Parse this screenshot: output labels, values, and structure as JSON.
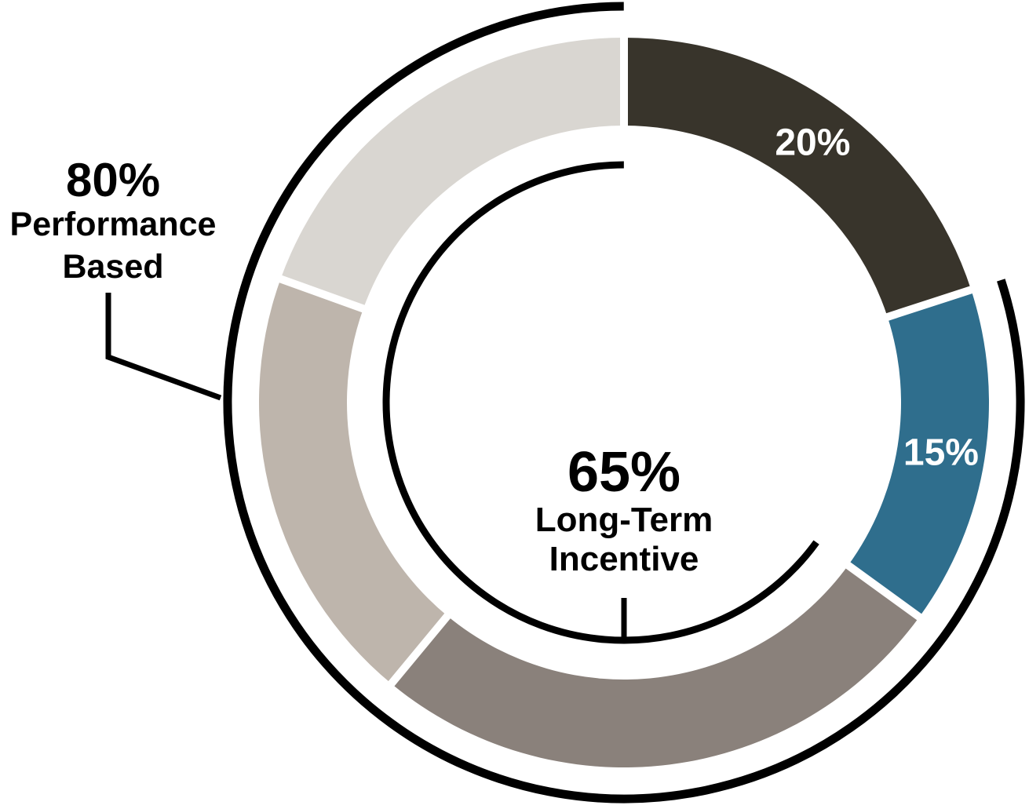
{
  "chart_data": {
    "type": "donut",
    "background_color": "#ffffff",
    "arc_color": "#000000",
    "segments": [
      {
        "label": "20%",
        "value": 20,
        "color": "#38342b",
        "label_color": "#ffffff"
      },
      {
        "label": "15%",
        "value": 15,
        "color": "#2f6e8d",
        "label_color": "#ffffff"
      },
      {
        "label": "",
        "value": 26,
        "color": "#8a817b",
        "label_color": ""
      },
      {
        "label": "",
        "value": 19.5,
        "color": "#beb5ac",
        "label_color": ""
      },
      {
        "label": "",
        "value": 19.5,
        "color": "#d9d6d1",
        "label_color": ""
      }
    ],
    "brackets": {
      "outer": {
        "percent": 80,
        "label_value": "80%",
        "label_lines": [
          "Performance",
          "Based"
        ]
      },
      "inner": {
        "percent": 65,
        "label_value": "65%",
        "label_lines": [
          "Long-Term",
          "Incentive"
        ]
      }
    }
  }
}
